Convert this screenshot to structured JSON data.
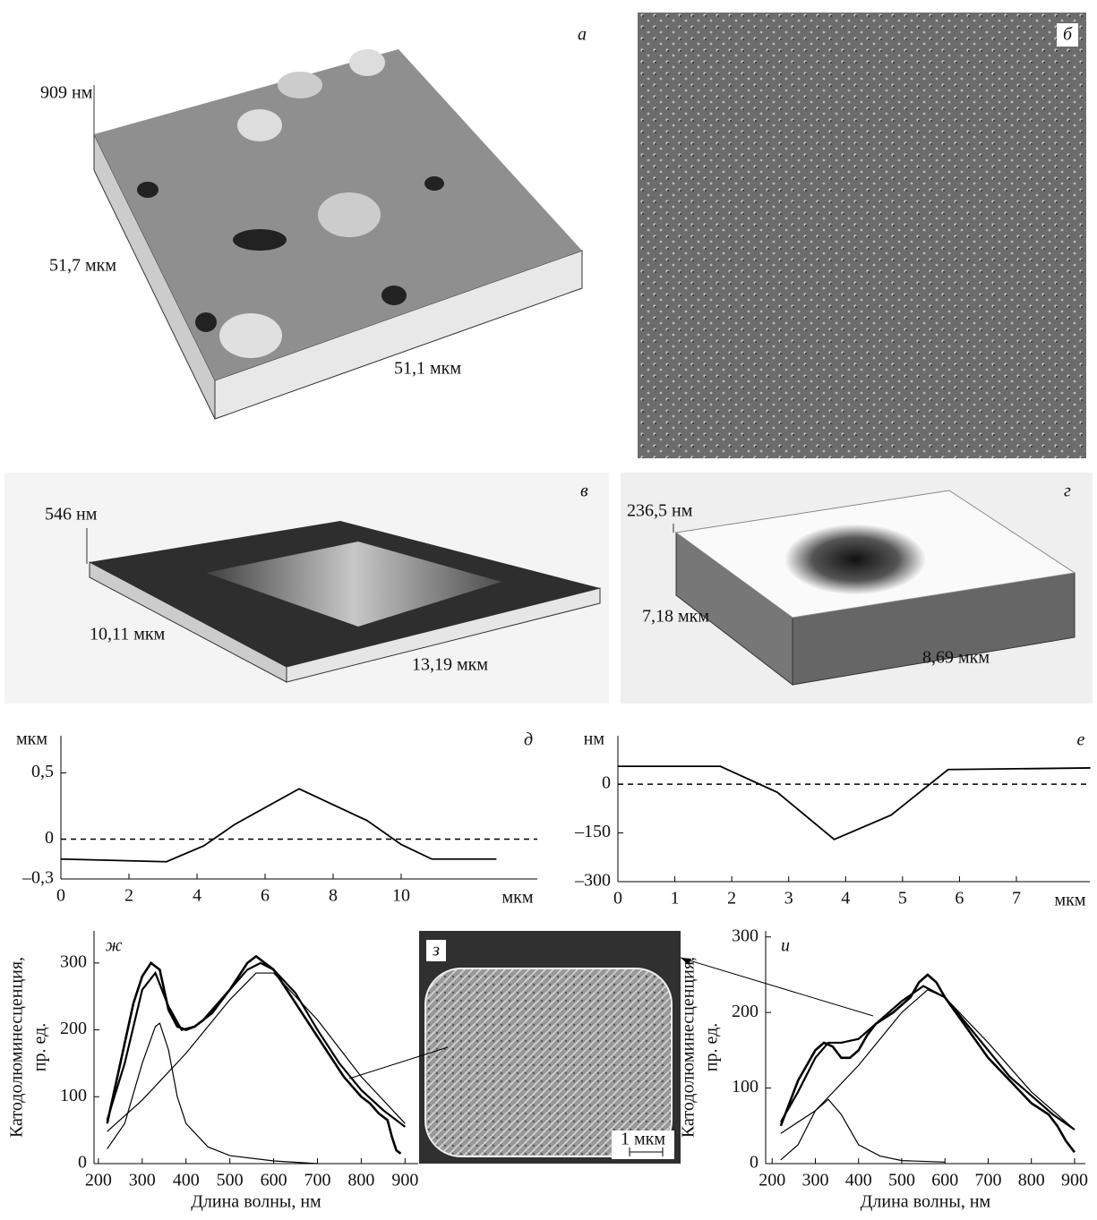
{
  "images": [
    {
      "label": "а",
      "height": "909 нм",
      "depth": "51,7 мкм",
      "width": "51,1 мкм"
    },
    {
      "label": "б"
    },
    {
      "label": "в",
      "height": "546 нм",
      "depth": "10,11 мкм",
      "width": "13,19 мкм"
    },
    {
      "label": "г",
      "height": "236,5 нм",
      "depth": "7,18 мкм",
      "width": "8,69 мкм"
    },
    {
      "label": "з",
      "scale": "1 мкм"
    }
  ],
  "chart_data": [
    {
      "type": "line",
      "panel_label": "д",
      "y_unit": "мкм",
      "x_unit": "мкм",
      "color": "#000",
      "x": [
        0,
        3.1,
        4.2,
        5.1,
        7,
        9,
        10,
        10.9,
        12.8
      ],
      "values": [
        -0.15,
        -0.17,
        -0.05,
        0.11,
        0.38,
        0.14,
        -0.04,
        -0.15,
        -0.15
      ],
      "hline": 0,
      "xlim": [
        0,
        14
      ],
      "ylim": [
        -0.3,
        0.78
      ],
      "xticks": [
        0,
        2,
        4,
        6,
        8,
        10
      ],
      "yticks": [
        {
          "value": -0.3,
          "label": "–0,3"
        },
        0,
        {
          "value": 0.5,
          "label": "0,5"
        }
      ]
    },
    {
      "type": "line",
      "panel_label": "е",
      "y_unit": "нм",
      "x_unit": "мкм",
      "color": "#000",
      "x": [
        0,
        1.8,
        2.8,
        3.8,
        4.8,
        5.8,
        8.3
      ],
      "values": [
        55,
        55,
        -25,
        -170,
        -95,
        45,
        50
      ],
      "hline": 0,
      "xlim": [
        0,
        8.29
      ],
      "ylim": [
        -300,
        149
      ],
      "xticks": [
        0,
        1,
        2,
        3,
        4,
        5,
        6,
        7
      ],
      "yticks": [
        {
          "value": -300,
          "label": "–300"
        },
        {
          "value": -150,
          "label": "–150"
        },
        0
      ]
    },
    {
      "type": "line",
      "panel_label": "ж",
      "y_label": [
        "Катодолюминесценция,",
        "пр. ед."
      ],
      "x_label": "Длина волны, нм",
      "xlim": [
        190,
        930
      ],
      "ylim": [
        0,
        348
      ],
      "xticks": [
        200,
        300,
        400,
        500,
        600,
        700,
        800,
        900
      ],
      "yticks": [
        0,
        100,
        200,
        300
      ],
      "series": [
        {
          "color": "#000",
          "x": [
            220,
            250,
            280,
            300,
            320,
            340,
            360,
            380,
            400,
            420,
            440,
            460,
            480,
            500,
            520,
            540,
            560,
            580,
            600,
            620,
            640,
            660,
            680,
            700,
            720,
            740,
            760,
            780,
            800,
            820,
            840,
            860,
            870,
            880,
            890
          ],
          "values": [
            60,
            150,
            240,
            280,
            300,
            290,
            230,
            205,
            200,
            205,
            215,
            230,
            245,
            260,
            280,
            300,
            310,
            300,
            290,
            270,
            250,
            230,
            210,
            190,
            170,
            150,
            130,
            115,
            100,
            90,
            75,
            65,
            40,
            20,
            15
          ]
        },
        {
          "color": "#000",
          "x": [
            220,
            260,
            300,
            330,
            360,
            390,
            420,
            460,
            500,
            540,
            570,
            600,
            650,
            700,
            750,
            800,
            850,
            900
          ],
          "values": [
            65,
            150,
            260,
            285,
            235,
            200,
            205,
            225,
            260,
            290,
            300,
            290,
            255,
            200,
            150,
            110,
            80,
            55
          ]
        },
        {
          "color": "#000",
          "x": [
            220,
            260,
            300,
            330,
            340,
            360,
            380,
            400,
            450,
            500,
            600,
            700
          ],
          "values": [
            22,
            60,
            150,
            205,
            210,
            170,
            100,
            60,
            25,
            12,
            4,
            0
          ]
        },
        {
          "color": "#000",
          "x": [
            220,
            300,
            400,
            500,
            560,
            600,
            700,
            800,
            900
          ],
          "values": [
            48,
            95,
            165,
            245,
            285,
            285,
            215,
            130,
            60
          ]
        }
      ]
    },
    {
      "type": "line",
      "panel_label": "и",
      "y_label": [
        "Катодолюминесценция,",
        "пр. ед."
      ],
      "x_label": "Длина волны, нм",
      "xlim": [
        185,
        925
      ],
      "ylim": [
        0,
        308
      ],
      "xticks": [
        200,
        300,
        400,
        500,
        600,
        700,
        800,
        900
      ],
      "yticks": [
        0,
        100,
        200,
        300
      ],
      "series": [
        {
          "color": "#000",
          "x": [
            220,
            260,
            300,
            320,
            340,
            360,
            380,
            400,
            420,
            440,
            480,
            520,
            540,
            560,
            580,
            600,
            650,
            700,
            750,
            800,
            840,
            860,
            880,
            900
          ],
          "values": [
            50,
            110,
            150,
            160,
            155,
            140,
            140,
            150,
            170,
            185,
            200,
            220,
            240,
            250,
            240,
            220,
            180,
            140,
            110,
            80,
            65,
            50,
            30,
            15
          ]
        },
        {
          "color": "#000",
          "x": [
            220,
            260,
            300,
            330,
            360,
            400,
            450,
            500,
            550,
            600,
            650,
            700,
            750,
            800,
            850,
            900
          ],
          "values": [
            55,
            95,
            140,
            160,
            160,
            165,
            190,
            215,
            235,
            220,
            185,
            150,
            115,
            90,
            65,
            45
          ]
        },
        {
          "color": "#000",
          "x": [
            220,
            260,
            300,
            330,
            360,
            400,
            450,
            500,
            600
          ],
          "values": [
            5,
            25,
            70,
            85,
            65,
            25,
            10,
            4,
            2
          ]
        },
        {
          "color": "#000",
          "x": [
            220,
            300,
            400,
            500,
            560,
            600,
            700,
            800,
            900
          ],
          "values": [
            40,
            70,
            130,
            200,
            230,
            220,
            160,
            95,
            45
          ]
        }
      ]
    }
  ]
}
